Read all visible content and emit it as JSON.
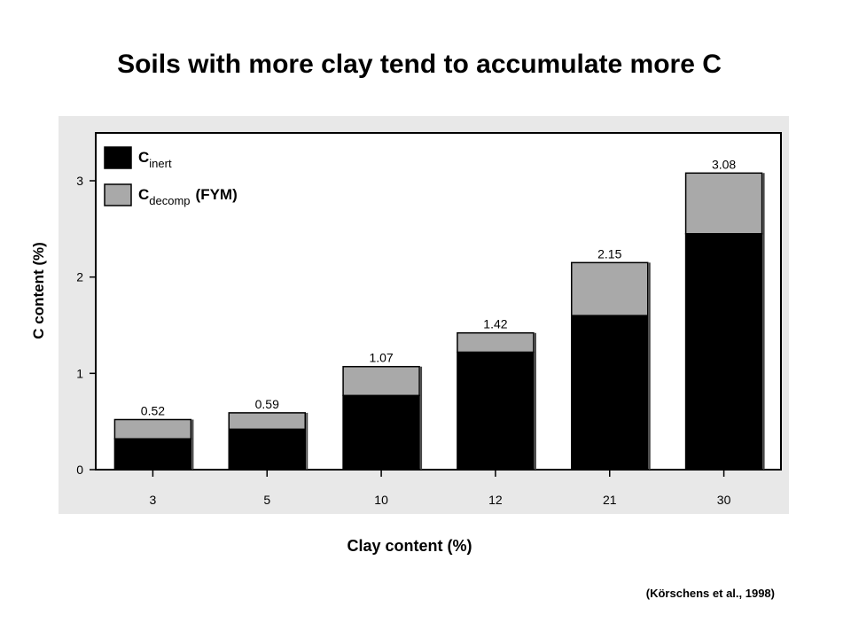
{
  "slide_title": "Soils with more clay tend to accumulate more C",
  "citation": "(Körschens et al., 1998)",
  "chart_data": {
    "type": "bar",
    "stacked": true,
    "title": "",
    "xlabel": "Clay content (%)",
    "ylabel": "C content (%)",
    "ylim": [
      0,
      3.4
    ],
    "yticks": [
      0,
      1,
      2,
      3
    ],
    "grid": false,
    "legend_position": "top-left",
    "categories": [
      "3",
      "5",
      "10",
      "12",
      "21",
      "30"
    ],
    "series": [
      {
        "name_main": "C",
        "name_sub": "inert",
        "name_suffix": "",
        "color": "#000000",
        "values": [
          0.32,
          0.42,
          0.77,
          1.22,
          1.6,
          2.45
        ]
      },
      {
        "name_main": "C",
        "name_sub": "decomp",
        "name_suffix": "(FYM)",
        "color": "#a9a9a9",
        "values": [
          0.2,
          0.17,
          0.3,
          0.2,
          0.55,
          0.63
        ]
      }
    ],
    "totals": [
      "0.52",
      "0.59",
      "1.07",
      "1.42",
      "2.15",
      "3.08"
    ],
    "plot_bg": "#e8e8e8",
    "frame_bg": "#ffffff"
  }
}
